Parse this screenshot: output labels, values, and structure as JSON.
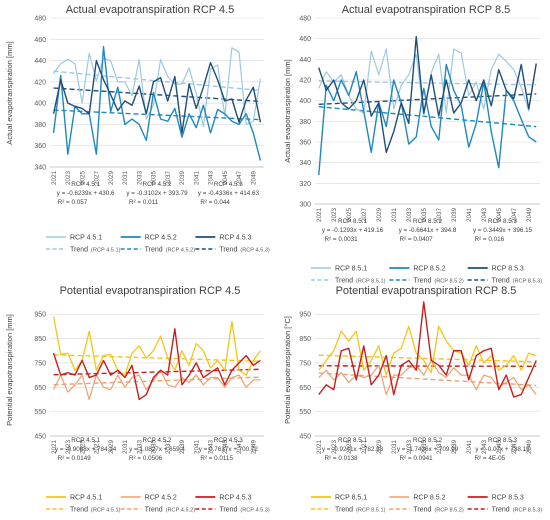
{
  "chart_data": [
    {
      "type": "line",
      "title": "Actual evapotranspiration RCP 4.5",
      "xlabel": "",
      "ylabel": "Actual evapotranspiration [mm]",
      "ylim": [
        340,
        480
      ],
      "yticks": [
        340,
        360,
        380,
        400,
        420,
        440,
        460,
        480
      ],
      "x": [
        2021,
        2022,
        2023,
        2024,
        2025,
        2026,
        2027,
        2028,
        2029,
        2030,
        2031,
        2032,
        2033,
        2034,
        2035,
        2036,
        2037,
        2038,
        2039,
        2040,
        2041,
        2042,
        2043,
        2044,
        2045,
        2046,
        2047,
        2048,
        2049,
        2050
      ],
      "xtick_labels": [
        "2021",
        "2023",
        "2025",
        "2027",
        "2029",
        "2031",
        "2033",
        "2035",
        "2037",
        "2039",
        "2041",
        "2043",
        "2045",
        "2047",
        "2049"
      ],
      "series": [
        {
          "name": "RCP 4.5.1",
          "color": "#9ec8e2",
          "width": 1.2,
          "values": [
            428,
            437,
            441,
            437,
            400,
            447,
            421,
            442,
            440,
            420,
            420,
            407,
            441,
            385,
            398,
            441,
            425,
            418,
            418,
            433,
            409,
            378,
            432,
            436,
            388,
            452,
            448,
            380,
            383,
            423
          ]
        },
        {
          "name": "RCP 4.5.2",
          "color": "#1e88c0",
          "width": 1.4,
          "values": [
            372,
            426,
            352,
            397,
            390,
            390,
            352,
            453,
            392,
            415,
            380,
            385,
            380,
            365,
            410,
            385,
            383,
            395,
            368,
            390,
            377,
            398,
            372,
            394,
            390,
            383,
            380,
            390,
            372,
            346
          ]
        },
        {
          "name": "RCP 4.5.3",
          "color": "#1f4e79",
          "width": 1.4,
          "values": [
            390,
            422,
            400,
            397,
            395,
            390,
            440,
            422,
            408,
            393,
            402,
            398,
            416,
            390,
            420,
            424,
            402,
            425,
            372,
            418,
            395,
            415,
            438,
            422,
            402,
            404,
            382,
            403,
            415,
            382
          ]
        }
      ],
      "trends": [
        {
          "name": "Trend",
          "series_label": "(RCP 4.5.1)",
          "color": "#9ec8e2",
          "slope": -0.6239,
          "intercept": 430.6,
          "equation": "y = -0.6239x + 430.6",
          "r2": "R² = 0.057"
        },
        {
          "name": "Trend",
          "series_label": "(RCP 4.5.2)",
          "color": "#1e88c0",
          "slope": -0.3102,
          "intercept": 393.79,
          "equation": "y = -0.3102x + 393.79",
          "r2": "R² = 0.011"
        },
        {
          "name": "Trend",
          "series_label": "(RCP 4.5.3)",
          "color": "#1f4e79",
          "slope": -0.4336,
          "intercept": 414.63,
          "equation": "y = -0.4336x + 414.63",
          "r2": "R² = 0.044"
        }
      ],
      "annotation_titles": [
        "RCP 4.5.1",
        "RCP 4.5.2",
        "RCP 4.5.3"
      ]
    },
    {
      "type": "line",
      "title": "Actual evapotranspiration RCP 8.5",
      "xlabel": "",
      "ylabel": "Actual evapotranspiration [mm]",
      "ylim": [
        300,
        480
      ],
      "yticks": [
        300,
        320,
        340,
        360,
        380,
        400,
        420,
        440,
        460,
        480
      ],
      "x": [
        2021,
        2022,
        2023,
        2024,
        2025,
        2026,
        2027,
        2028,
        2029,
        2030,
        2031,
        2032,
        2033,
        2034,
        2035,
        2036,
        2037,
        2038,
        2039,
        2040,
        2041,
        2042,
        2043,
        2044,
        2045,
        2046,
        2047,
        2048,
        2049,
        2050
      ],
      "xtick_labels": [
        "2021",
        "2023",
        "2025",
        "2027",
        "2029",
        "2031",
        "2033",
        "2035",
        "2037",
        "2039",
        "2041",
        "2043",
        "2045",
        "2047",
        "2049"
      ],
      "series": [
        {
          "name": "RCP 8.5.1",
          "color": "#9ec8e2",
          "width": 1.2,
          "values": [
            412,
            428,
            418,
            425,
            405,
            392,
            388,
            448,
            425,
            450,
            392,
            415,
            425,
            445,
            385,
            427,
            445,
            388,
            450,
            446,
            405,
            418,
            392,
            430,
            445,
            438,
            430,
            413,
            390,
            436
          ]
        },
        {
          "name": "RCP 8.5.2",
          "color": "#1e88c0",
          "width": 1.4,
          "values": [
            328,
            415,
            400,
            420,
            405,
            428,
            390,
            350,
            398,
            375,
            420,
            398,
            358,
            365,
            412,
            375,
            362,
            435,
            410,
            395,
            355,
            378,
            418,
            370,
            335,
            410,
            400,
            382,
            365,
            360
          ]
        },
        {
          "name": "RCP 8.5.3",
          "color": "#1f4e79",
          "width": 1.4,
          "values": [
            432,
            410,
            420,
            398,
            392,
            400,
            420,
            385,
            398,
            350,
            370,
            398,
            378,
            462,
            388,
            425,
            385,
            420,
            388,
            398,
            420,
            400,
            420,
            395,
            430,
            410,
            402,
            435,
            392,
            436
          ]
        }
      ],
      "trends": [
        {
          "name": "Trend",
          "series_label": "(RCP 8.5.1)",
          "color": "#9ec8e2",
          "slope": -0.1293,
          "intercept": 419.16,
          "equation": "y = -0.1293x + 419.16",
          "r2": "R² = 0.0031"
        },
        {
          "name": "Trend",
          "series_label": "(RCP 8.5.2)",
          "color": "#1e88c0",
          "slope": -0.6641,
          "intercept": 394.8,
          "equation": "y = -0.6641x + 394.8",
          "r2": "R² = 0.0407"
        },
        {
          "name": "Trend",
          "series_label": "(RCP 8.5.3)",
          "color": "#1f4e79",
          "slope": 0.3449,
          "intercept": 396.15,
          "equation": "y = 0.3449x + 396.15",
          "r2": "R² = 0.016"
        }
      ],
      "annotation_titles": [
        "RCP 8.5.1",
        "RCP 8.5.2",
        "RCP 8.5.3"
      ]
    },
    {
      "type": "line",
      "title": "Potential evapotranspiration RCP 4.5",
      "xlabel": "",
      "ylabel": "Potential evapotranspiration [mm]",
      "ylim": [
        450,
        1000
      ],
      "yticks": [
        450,
        550,
        650,
        750,
        850,
        950
      ],
      "x": [
        2021,
        2022,
        2023,
        2024,
        2025,
        2026,
        2027,
        2028,
        2029,
        2030,
        2031,
        2032,
        2033,
        2034,
        2035,
        2036,
        2037,
        2038,
        2039,
        2040,
        2041,
        2042,
        2043,
        2044,
        2045,
        2046,
        2047,
        2048,
        2049,
        2050
      ],
      "xtick_labels": [
        "2021",
        "2023",
        "2025",
        "2027",
        "2029",
        "2031",
        "2033",
        "2035",
        "2037",
        "2039",
        "2041",
        "2043",
        "2045",
        "2047",
        "2049"
      ],
      "series": [
        {
          "name": "RCP 4.5.1",
          "color": "#f5c518",
          "width": 1.3,
          "values": [
            940,
            785,
            790,
            720,
            760,
            880,
            720,
            780,
            785,
            720,
            700,
            790,
            820,
            770,
            800,
            860,
            770,
            720,
            800,
            740,
            830,
            800,
            730,
            760,
            720,
            920,
            720,
            700,
            760,
            800
          ]
        },
        {
          "name": "RCP 4.5.2",
          "color": "#f0a070",
          "width": 1.2,
          "values": [
            640,
            700,
            630,
            660,
            700,
            600,
            700,
            650,
            640,
            700,
            650,
            690,
            700,
            640,
            680,
            720,
            660,
            650,
            690,
            670,
            700,
            660,
            690,
            690,
            650,
            690,
            700,
            650,
            680,
            680
          ]
        },
        {
          "name": "RCP 4.5.3",
          "color": "#c81e1e",
          "width": 1.4,
          "values": [
            790,
            700,
            710,
            700,
            760,
            690,
            700,
            760,
            700,
            720,
            690,
            740,
            600,
            620,
            690,
            720,
            700,
            890,
            660,
            700,
            750,
            690,
            710,
            730,
            660,
            720,
            750,
            780,
            740,
            760
          ]
        }
      ],
      "trends": [
        {
          "name": "Trend",
          "series_label": "(RCP 4.5.1)",
          "color": "#f5c518",
          "slope": -0.9083,
          "intercept": 784.14,
          "equation": "y = -0.9083x + 784.14",
          "r2": "R² = 0.0149"
        },
        {
          "name": "Trend",
          "series_label": "(RCP 4.5.2)",
          "color": "#f0a070",
          "slope": 1.0827,
          "intercept": 659.4,
          "equation": "y = 1.0827x + 659.4",
          "r2": "R² = 0.0506"
        },
        {
          "name": "Trend",
          "series_label": "(RCP 4.5.3)",
          "color": "#c81e1e",
          "slope": 0.7637,
          "intercept": 700.72,
          "equation": "y = 0.7637x + 700.72",
          "r2": "R² = 0.0115"
        }
      ],
      "annotation_titles": [
        "RCP 4.5.1",
        "RCP 4.5.2",
        "RCP 4.5.3"
      ]
    },
    {
      "type": "line",
      "title": "Potential evapotranspiration RCP 8.5",
      "xlabel": "",
      "ylabel": "Potential evapotranspiration [°C]",
      "ylim": [
        450,
        1000
      ],
      "yticks": [
        450,
        550,
        650,
        750,
        850,
        950
      ],
      "x": [
        2021,
        2022,
        2023,
        2024,
        2025,
        2026,
        2027,
        2028,
        2029,
        2030,
        2031,
        2032,
        2033,
        2034,
        2035,
        2036,
        2037,
        2038,
        2039,
        2040,
        2041,
        2042,
        2043,
        2044,
        2045,
        2046,
        2047,
        2048,
        2049,
        2050
      ],
      "xtick_labels": [
        "2021",
        "2023",
        "2025",
        "2027",
        "2029",
        "2031",
        "2033",
        "2035",
        "2037",
        "2039",
        "2041",
        "2043",
        "2045",
        "2047",
        "2049"
      ],
      "series": [
        {
          "name": "RCP 8.5.1",
          "color": "#f5c518",
          "width": 1.3,
          "values": [
            720,
            760,
            800,
            880,
            840,
            880,
            720,
            760,
            820,
            700,
            790,
            810,
            900,
            790,
            760,
            710,
            900,
            840,
            800,
            790,
            740,
            820,
            750,
            780,
            720,
            740,
            780,
            720,
            790,
            780
          ]
        },
        {
          "name": "RCP 8.5.2",
          "color": "#f0a070",
          "width": 1.2,
          "values": [
            690,
            720,
            680,
            710,
            670,
            700,
            690,
            700,
            740,
            620,
            700,
            700,
            730,
            740,
            700,
            760,
            710,
            690,
            730,
            700,
            700,
            640,
            700,
            690,
            650,
            670,
            690,
            640,
            660,
            620
          ]
        },
        {
          "name": "RCP 8.5.3",
          "color": "#c81e1e",
          "width": 1.4,
          "values": [
            620,
            660,
            640,
            800,
            810,
            680,
            820,
            660,
            700,
            780,
            620,
            740,
            760,
            720,
            1000,
            760,
            740,
            700,
            800,
            800,
            680,
            780,
            800,
            810,
            640,
            700,
            610,
            620,
            690,
            760
          ]
        }
      ],
      "trends": [
        {
          "name": "Trend",
          "series_label": "(RCP 8.5.1)",
          "color": "#f5c518",
          "slope": -0.9241,
          "intercept": 782.33,
          "equation": "y = -0.9241x + 782.33",
          "r2": "R² = 0.0138"
        },
        {
          "name": "Trend",
          "series_label": "(RCP 8.5.2)",
          "color": "#f0a070",
          "slope": -1.7436,
          "intercept": 709.99,
          "equation": "y = -1.7436x + 709.99",
          "r2": "R² = 0.0941"
        },
        {
          "name": "Trend",
          "series_label": "(RCP 8.5.3)",
          "color": "#c81e1e",
          "slope": -0.07,
          "intercept": 738.15,
          "equation": "y = -0.07x + 738.15",
          "r2": "R² = 4E-05"
        }
      ],
      "annotation_titles": [
        "RCP 8.5.1",
        "RCP 8.5.2",
        "RCP 8.5.3"
      ]
    }
  ]
}
